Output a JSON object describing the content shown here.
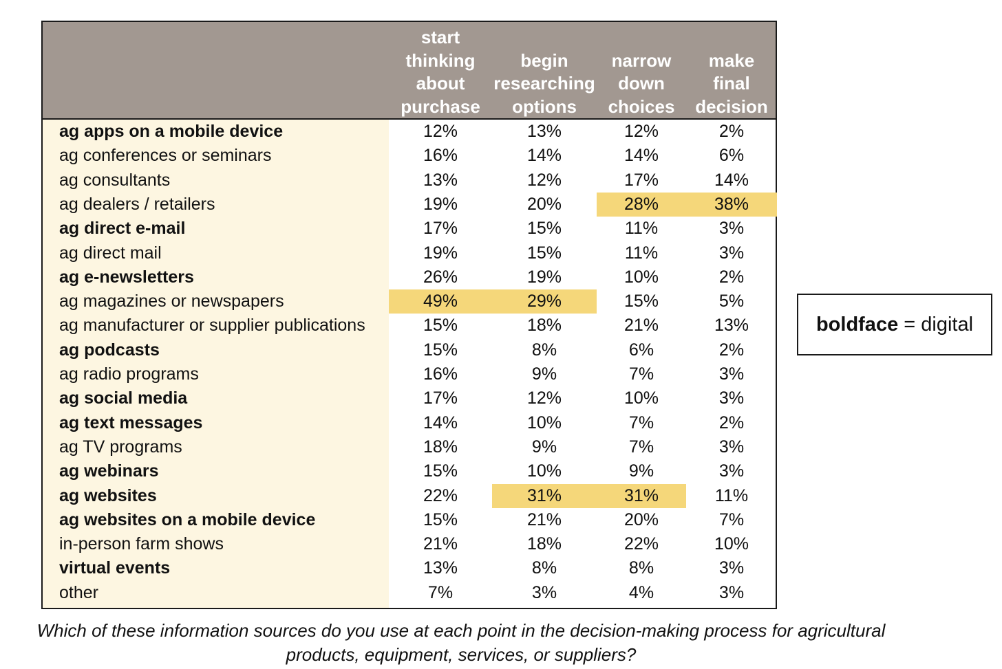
{
  "chart_data": {
    "type": "table",
    "columns": [
      "start\nthinking\nabout\npurchase",
      "begin\nresearching\noptions",
      "narrow\ndown\nchoices",
      "make\nfinal\ndecision"
    ],
    "rows": [
      {
        "label": "ag apps on a mobile device",
        "digital": true,
        "values": [
          "12%",
          "13%",
          "12%",
          "2%"
        ],
        "highlight": []
      },
      {
        "label": "ag conferences or seminars",
        "digital": false,
        "values": [
          "16%",
          "14%",
          "14%",
          "6%"
        ],
        "highlight": []
      },
      {
        "label": "ag consultants",
        "digital": false,
        "values": [
          "13%",
          "12%",
          "17%",
          "14%"
        ],
        "highlight": []
      },
      {
        "label": "ag dealers / retailers",
        "digital": false,
        "values": [
          "19%",
          "20%",
          "28%",
          "38%"
        ],
        "highlight": [
          2,
          3
        ]
      },
      {
        "label": "ag direct e-mail",
        "digital": true,
        "values": [
          "17%",
          "15%",
          "11%",
          "3%"
        ],
        "highlight": []
      },
      {
        "label": "ag direct mail",
        "digital": false,
        "values": [
          "19%",
          "15%",
          "11%",
          "3%"
        ],
        "highlight": []
      },
      {
        "label": "ag e-newsletters",
        "digital": true,
        "values": [
          "26%",
          "19%",
          "10%",
          "2%"
        ],
        "highlight": []
      },
      {
        "label": "ag magazines or newspapers",
        "digital": false,
        "values": [
          "49%",
          "29%",
          "15%",
          "5%"
        ],
        "highlight": [
          0,
          1
        ]
      },
      {
        "label": "ag manufacturer or supplier publications",
        "digital": false,
        "values": [
          "15%",
          "18%",
          "21%",
          "13%"
        ],
        "highlight": []
      },
      {
        "label": "ag podcasts",
        "digital": true,
        "values": [
          "15%",
          "8%",
          "6%",
          "2%"
        ],
        "highlight": []
      },
      {
        "label": "ag radio programs",
        "digital": false,
        "values": [
          "16%",
          "9%",
          "7%",
          "3%"
        ],
        "highlight": []
      },
      {
        "label": "ag social media",
        "digital": true,
        "values": [
          "17%",
          "12%",
          "10%",
          "3%"
        ],
        "highlight": []
      },
      {
        "label": "ag text messages",
        "digital": true,
        "values": [
          "14%",
          "10%",
          "7%",
          "2%"
        ],
        "highlight": []
      },
      {
        "label": "ag TV programs",
        "digital": false,
        "values": [
          "18%",
          "9%",
          "7%",
          "3%"
        ],
        "highlight": []
      },
      {
        "label": "ag webinars",
        "digital": true,
        "values": [
          "15%",
          "10%",
          "9%",
          "3%"
        ],
        "highlight": []
      },
      {
        "label": "ag websites",
        "digital": true,
        "values": [
          "22%",
          "31%",
          "31%",
          "11%"
        ],
        "highlight": [
          1,
          2
        ]
      },
      {
        "label": "ag websites on a mobile device",
        "digital": true,
        "values": [
          "15%",
          "21%",
          "20%",
          "7%"
        ],
        "highlight": []
      },
      {
        "label": "in-person farm shows",
        "digital": false,
        "values": [
          "21%",
          "18%",
          "22%",
          "10%"
        ],
        "highlight": []
      },
      {
        "label": "virtual events",
        "digital": true,
        "values": [
          "13%",
          "8%",
          "8%",
          "3%"
        ],
        "highlight": []
      },
      {
        "label": "other",
        "digital": false,
        "values": [
          "7%",
          "3%",
          "4%",
          "3%"
        ],
        "highlight": []
      }
    ],
    "colors": {
      "header_bg": "#a29891",
      "label_bg": "#fdf6e1",
      "highlight": "#f5d77a"
    }
  },
  "legend": {
    "bold_word": "boldface",
    "rest": " = digital"
  },
  "caption": "Which of these information sources do you use at each point in the decision-making process for agricultural products, equipment, services, or suppliers?"
}
